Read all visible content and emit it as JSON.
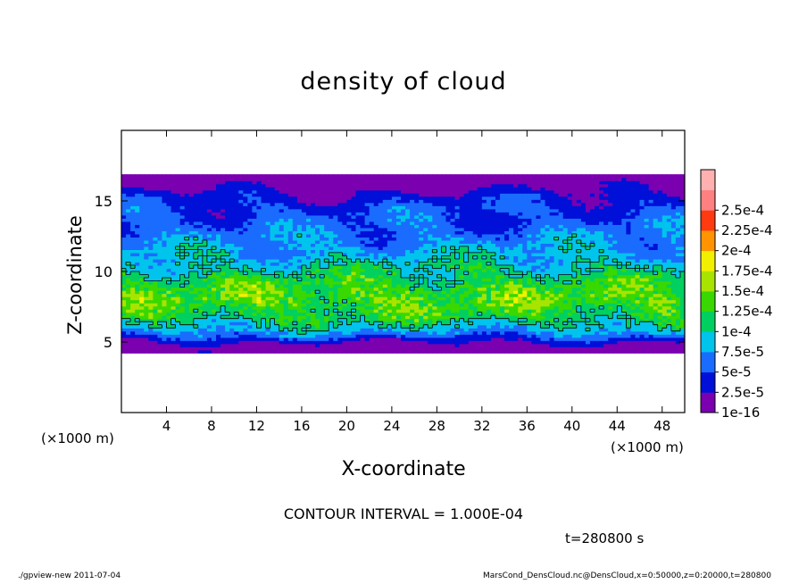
{
  "title": "density of cloud",
  "chart_data": {
    "type": "heatmap",
    "title": "density of cloud",
    "xlabel": "X-coordinate",
    "ylabel": "Z-coordinate",
    "x_unit": "(×1000 m)",
    "xlim": [
      0,
      50
    ],
    "ylim": [
      0,
      20
    ],
    "x_ticks": [
      "4",
      "8",
      "12",
      "16",
      "20",
      "24",
      "28",
      "32",
      "36",
      "40",
      "44",
      "48"
    ],
    "y_ticks": [
      "5",
      "10",
      "15"
    ],
    "colorbar": {
      "levels": [
        "1e-16",
        "2.5e-5",
        "5e-5",
        "7.5e-5",
        "1e-4",
        "1.25e-4",
        "1.5e-4",
        "1.75e-4",
        "2e-4",
        "2.25e-4",
        "2.5e-4"
      ],
      "level_values": [
        1e-16,
        2.5e-05,
        5e-05,
        7.5e-05,
        0.0001,
        0.000125,
        0.00015,
        0.000175,
        0.0002,
        0.000225,
        0.00025
      ],
      "colors": [
        "#7a00b0",
        "#0010d8",
        "#1a6cff",
        "#00c4ec",
        "#00d060",
        "#38d800",
        "#a8e400",
        "#f2f000",
        "#ff9400",
        "#ff3a10",
        "#ff8080",
        "#ffb0b0"
      ]
    },
    "field_profile": [
      {
        "z": 4.3,
        "value": 0.0
      },
      {
        "z": 4.6,
        "value": 1e-16
      },
      {
        "z": 5.1,
        "value": 3e-05
      },
      {
        "z": 5.5,
        "value": 6e-05
      },
      {
        "z": 6.0,
        "value": 9e-05
      },
      {
        "z": 6.8,
        "value": 0.00012
      },
      {
        "z": 8.0,
        "value": 0.00014
      },
      {
        "z": 9.2,
        "value": 0.000125
      },
      {
        "z": 10.3,
        "value": 0.0001
      },
      {
        "z": 11.5,
        "value": 8e-05
      },
      {
        "z": 13.0,
        "value": 6e-05
      },
      {
        "z": 14.5,
        "value": 5e-05
      },
      {
        "z": 15.5,
        "value": 3e-05
      },
      {
        "z": 16.0,
        "value": 1.5e-05
      },
      {
        "z": 16.6,
        "value": 1e-16
      },
      {
        "z": 17.0,
        "value": 0.0
      }
    ],
    "contour_interval": "1.000E-04",
    "grid": false,
    "legend_placement": "right"
  },
  "annotations": {
    "x_unit_left": "(×1000 m)",
    "x_unit_right": "(×1000 m)",
    "contour_interval_text": "CONTOUR INTERVAL = 1.000E-04",
    "time_text": "t=280800 s",
    "footer_left": "./gpview-new   2011-07-04",
    "footer_right": "MarsCond_DensCloud.nc@DensCloud,x=0:50000,z=0:20000,t=280800"
  }
}
